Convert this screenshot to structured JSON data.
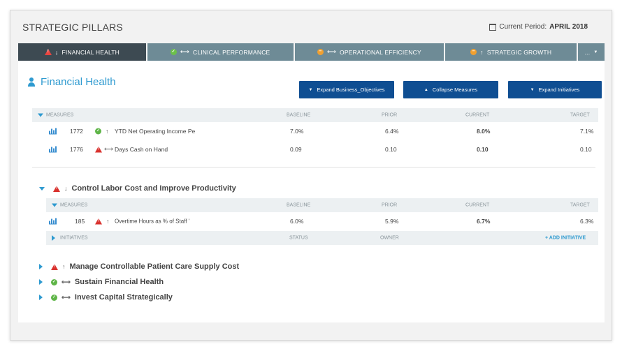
{
  "header": {
    "title": "STRATEGIC PILLARS",
    "period_label": "Current Period:",
    "period_value": "APRIL 2018"
  },
  "tabs": [
    {
      "label": "FINANCIAL HEALTH",
      "status": "warning",
      "trend": "down"
    },
    {
      "label": "CLINICAL PERFORMANCE",
      "status": "ok",
      "trend": "flat"
    },
    {
      "label": "OPERATIONAL EFFICIENCY",
      "status": "caution",
      "trend": "flat"
    },
    {
      "label": "STRATEGIC GROWTH",
      "status": "caution",
      "trend": "up"
    }
  ],
  "more_tab": "...",
  "section": {
    "title": "Financial Health",
    "buttons": {
      "expand_objectives": "Expand Business_Objectives",
      "collapse_measures": "Collapse Measures",
      "expand_initiatives": "Expand Initiatives"
    }
  },
  "columns": {
    "measures": "MEASURES",
    "baseline": "BASELINE",
    "prior": "PRIOR",
    "current": "CURRENT",
    "target": "TARGET",
    "initiatives": "INITIATIVES",
    "status": "STATUS",
    "owner": "OWNER",
    "add_initiative": "+ ADD INITIATIVE"
  },
  "measures": [
    {
      "id": "1772",
      "status": "ok",
      "trend": "up",
      "name": "YTD Net Operating Income Pe",
      "baseline": "7.0%",
      "prior": "6.4%",
      "current": "8.0%",
      "target": "7.1%"
    },
    {
      "id": "1776",
      "status": "warning",
      "trend": "flat",
      "name": "Days Cash on Hand",
      "baseline": "0.09",
      "prior": "0.10",
      "current": "0.10",
      "target": "0.10"
    }
  ],
  "objective_expanded": {
    "title": "Control Labor Cost and Improve Productivity",
    "status": "warning",
    "trend": "down",
    "measures": [
      {
        "id": "185",
        "status": "warning",
        "trend": "up",
        "name": "Overtime Hours as % of Staff '",
        "baseline": "6.0%",
        "prior": "5.9%",
        "current": "6.7%",
        "target": "6.3%"
      }
    ]
  },
  "objectives_collapsed": [
    {
      "title": "Manage Controllable Patient Care Supply Cost",
      "status": "warning",
      "trend": "up"
    },
    {
      "title": "Sustain Financial Health",
      "status": "ok",
      "trend": "flat"
    },
    {
      "title": "Invest Capital Strategically",
      "status": "ok",
      "trend": "flat"
    }
  ],
  "icons": {
    "calendar": "calendar-icon",
    "person": "person-icon",
    "chart": "bar-chart-icon",
    "ok": "check-circle-icon",
    "warning": "warning-triangle-icon",
    "caution": "minus-circle-icon"
  },
  "colors": {
    "accent": "#2e9ad0",
    "button": "#0f4e92",
    "tab": "#6e8b96",
    "tab_active": "#3d4a52",
    "ok": "#5fb548",
    "warning": "#d9322e",
    "caution": "#f0a030"
  }
}
